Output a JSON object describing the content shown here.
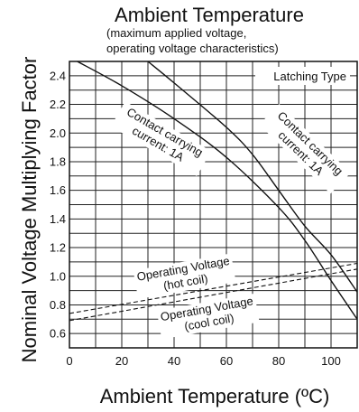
{
  "chart_data": {
    "type": "line",
    "title": "Ambient Temperature",
    "subtitle_line1": "(maximum applied voltage,",
    "subtitle_line2": "operating voltage characteristics)",
    "xlabel": "Ambient Temperature (ºC)",
    "ylabel": "Nominal Voltage Multiplying Factor",
    "xlim": [
      0,
      110
    ],
    "ylim": [
      0.5,
      2.5
    ],
    "x_ticks": [
      0,
      20,
      40,
      60,
      80,
      100
    ],
    "y_ticks": [
      0.6,
      0.8,
      1.0,
      1.2,
      1.4,
      1.6,
      1.8,
      2.0,
      2.2,
      2.4
    ],
    "x_tick_labels": [
      "0",
      "20",
      "40",
      "60",
      "80",
      "100"
    ],
    "y_tick_labels": [
      "0.6",
      "0.8",
      "1.0",
      "1.2",
      "1.4",
      "1.6",
      "1.8",
      "2.0",
      "2.2",
      "2.4"
    ],
    "grid": true,
    "legend_box": "Latching Type",
    "series": [
      {
        "style": "solid",
        "label_lines": [
          "Contact carrying",
          "current: 1A"
        ],
        "x": [
          3,
          20,
          40,
          60,
          80,
          90,
          100,
          110
        ],
        "y": [
          2.5,
          2.33,
          2.1,
          1.83,
          1.48,
          1.25,
          0.97,
          0.7
        ]
      },
      {
        "style": "solid",
        "label_lines": [
          "Contact carrying",
          "current: 1A"
        ],
        "x": [
          30,
          40,
          60,
          70,
          80,
          90,
          100,
          110
        ],
        "y": [
          2.5,
          2.35,
          2.04,
          1.85,
          1.6,
          1.35,
          1.15,
          0.89
        ]
      },
      {
        "style": "dashed",
        "label_lines": [
          "Operating Voltage",
          "(hot coil)"
        ],
        "x": [
          0,
          110
        ],
        "y": [
          0.74,
          1.09
        ]
      },
      {
        "style": "dashed",
        "label_lines": [
          "Operating Voltage",
          "(cool coil)"
        ],
        "x": [
          0,
          110
        ],
        "y": [
          0.69,
          1.05
        ]
      }
    ]
  }
}
